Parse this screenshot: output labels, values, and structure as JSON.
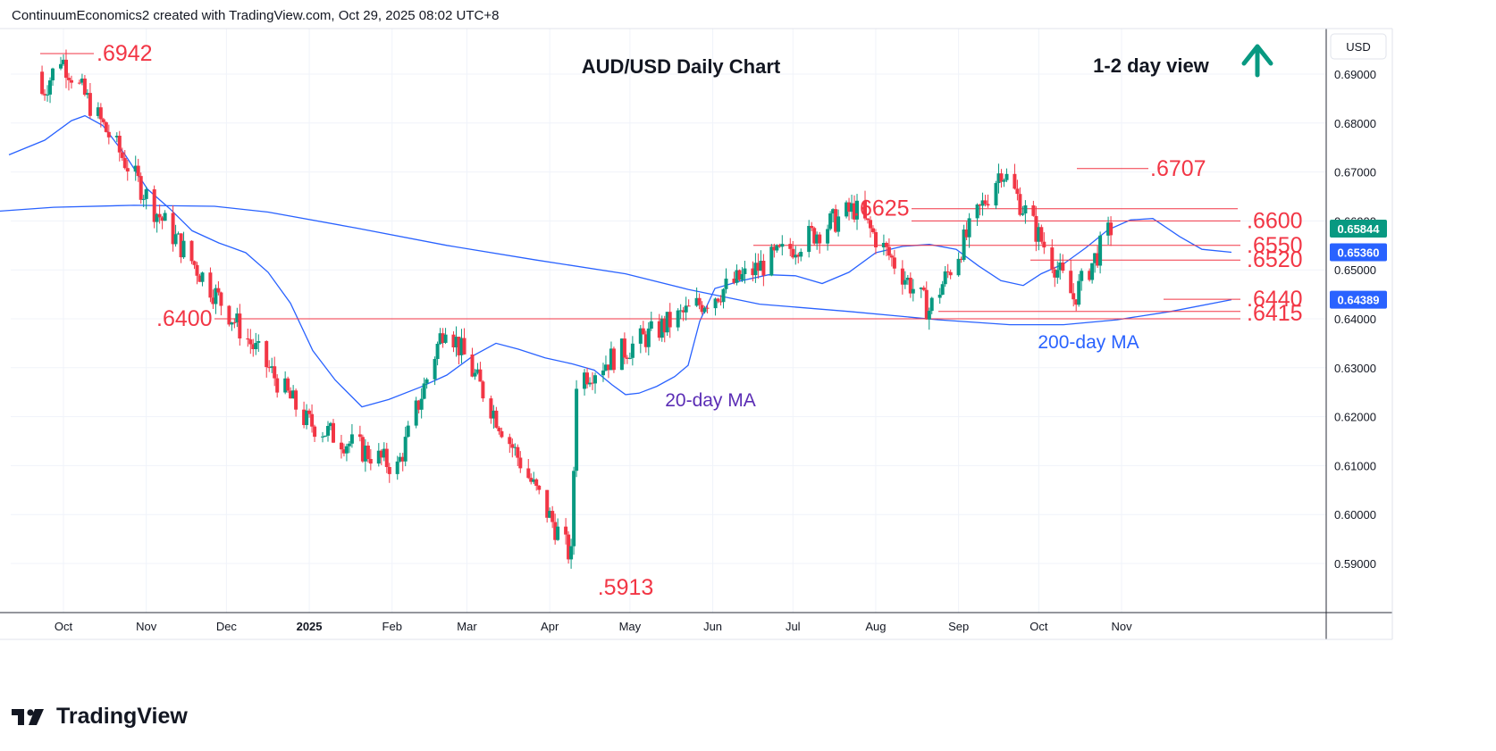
{
  "credit": "ContinuumEconomics2 created with TradingView.com, Oct 29, 2025 08:02 UTC+8",
  "brand": "TradingView",
  "chart_data": {
    "type": "candlestick",
    "title": "AUD/USD Daily Chart",
    "view_label": "1-2 day view",
    "view_icon": "arrow-up-icon",
    "currency": "USD",
    "ylim": [
      0.5825,
      0.6975
    ],
    "y_ticks": [
      "0.69000",
      "0.68000",
      "0.67000",
      "0.66000",
      "0.65000",
      "0.64000",
      "0.63000",
      "0.62000",
      "0.61000",
      "0.60000",
      "0.59000"
    ],
    "x_ticks": [
      "Oct",
      "Nov",
      "Dec",
      "2025",
      "Feb",
      "Mar",
      "Apr",
      "May",
      "Jun",
      "Jul",
      "Aug",
      "Sep",
      "Oct",
      "Nov"
    ],
    "price_tags": [
      {
        "label": "0.65844",
        "value": 0.65844,
        "color": "#089981"
      },
      {
        "label": "0.65360",
        "value": 0.6536,
        "color": "#2962ff"
      },
      {
        "label": "0.64389",
        "value": 0.64389,
        "color": "#2962ff"
      }
    ],
    "levels": [
      {
        "label": ".6942",
        "value": 0.6942
      },
      {
        "label": ".6707",
        "value": 0.6707
      },
      {
        "label": ".6625",
        "value": 0.6625
      },
      {
        "label": ".6600",
        "value": 0.66
      },
      {
        "label": ".6550",
        "value": 0.655
      },
      {
        "label": ".6520",
        "value": 0.652
      },
      {
        "label": ".6440",
        "value": 0.644
      },
      {
        "label": ".6415",
        "value": 0.6415
      },
      {
        "label": ".6400",
        "value": 0.64
      },
      {
        "label": ".5913",
        "value": 0.5913
      }
    ],
    "series": [
      {
        "name": "200-day MA",
        "color": "#2962ff",
        "label_color": "#2962ff",
        "values": [
          [
            0,
            0.662
          ],
          [
            60,
            0.6628
          ],
          [
            150,
            0.6632
          ],
          [
            240,
            0.663
          ],
          [
            300,
            0.6618
          ],
          [
            400,
            0.6585
          ],
          [
            500,
            0.655
          ],
          [
            600,
            0.652
          ],
          [
            700,
            0.6492
          ],
          [
            770,
            0.646
          ],
          [
            850,
            0.643
          ],
          [
            950,
            0.6415
          ],
          [
            1050,
            0.6398
          ],
          [
            1130,
            0.6388
          ],
          [
            1190,
            0.6388
          ],
          [
            1250,
            0.6398
          ],
          [
            1310,
            0.6415
          ],
          [
            1378,
            0.6439
          ]
        ]
      },
      {
        "name": "20-day MA",
        "color": "#2962ff",
        "label_color": "#5b2db5",
        "values": [
          [
            10,
            0.6735
          ],
          [
            50,
            0.6765
          ],
          [
            80,
            0.6805
          ],
          [
            95,
            0.6815
          ],
          [
            115,
            0.6795
          ],
          [
            140,
            0.6735
          ],
          [
            165,
            0.6665
          ],
          [
            190,
            0.6625
          ],
          [
            215,
            0.658
          ],
          [
            245,
            0.6555
          ],
          [
            275,
            0.6535
          ],
          [
            300,
            0.6495
          ],
          [
            325,
            0.6432
          ],
          [
            350,
            0.6335
          ],
          [
            375,
            0.6275
          ],
          [
            405,
            0.622
          ],
          [
            435,
            0.6235
          ],
          [
            470,
            0.626
          ],
          [
            500,
            0.6285
          ],
          [
            530,
            0.6325
          ],
          [
            555,
            0.635
          ],
          [
            580,
            0.6338
          ],
          [
            610,
            0.632
          ],
          [
            640,
            0.6308
          ],
          [
            665,
            0.6295
          ],
          [
            685,
            0.6265
          ],
          [
            700,
            0.6245
          ],
          [
            715,
            0.6248
          ],
          [
            735,
            0.6262
          ],
          [
            755,
            0.6282
          ],
          [
            770,
            0.6305
          ],
          [
            783,
            0.6395
          ],
          [
            800,
            0.6462
          ],
          [
            830,
            0.6478
          ],
          [
            860,
            0.649
          ],
          [
            890,
            0.6488
          ],
          [
            920,
            0.6472
          ],
          [
            950,
            0.6495
          ],
          [
            980,
            0.6535
          ],
          [
            1010,
            0.6548
          ],
          [
            1040,
            0.6552
          ],
          [
            1070,
            0.6542
          ],
          [
            1095,
            0.6508
          ],
          [
            1120,
            0.6478
          ],
          [
            1145,
            0.6468
          ],
          [
            1165,
            0.6492
          ],
          [
            1190,
            0.6512
          ],
          [
            1215,
            0.6545
          ],
          [
            1240,
            0.6582
          ],
          [
            1265,
            0.6602
          ],
          [
            1290,
            0.6605
          ],
          [
            1320,
            0.6568
          ],
          [
            1345,
            0.6542
          ],
          [
            1378,
            0.6536
          ]
        ]
      }
    ],
    "key_points": [
      {
        "date": "Sep 30 2024",
        "close": 0.6935
      },
      {
        "date": "Nov 4 2024",
        "close": 0.6625
      },
      {
        "date": "Dec 31 2024",
        "close": 0.619
      },
      {
        "date": "Feb 3 2025",
        "close": 0.6095
      },
      {
        "date": "Feb 21 2025",
        "close": 0.6395
      },
      {
        "date": "Apr 9 2025",
        "close": 0.5913
      },
      {
        "date": "Apr 11 2025",
        "close": 0.6275
      },
      {
        "date": "Jul 24 2025",
        "close": 0.6625
      },
      {
        "date": "Aug 21 2025",
        "close": 0.6418
      },
      {
        "date": "Sep 17 2025",
        "close": 0.6707
      },
      {
        "date": "Oct 14 2025",
        "close": 0.6442
      },
      {
        "date": "Oct 28 2025",
        "close": 0.65844
      }
    ]
  }
}
